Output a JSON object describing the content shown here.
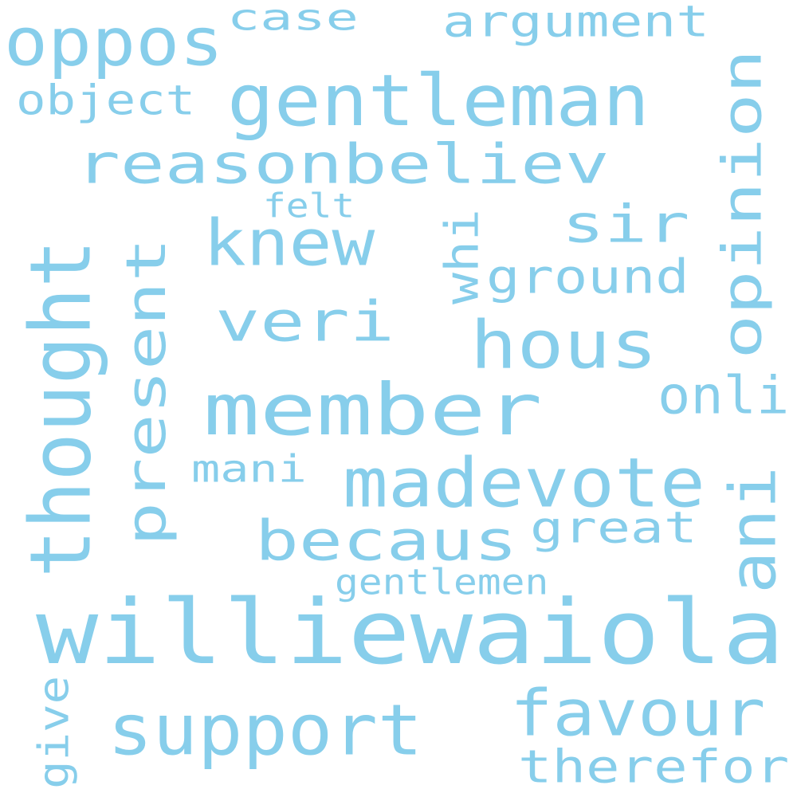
{
  "word_color": "#87ceeb",
  "background": "#ffffff",
  "words": [
    {
      "id": "williewaiola",
      "text": "williewaiola"
    },
    {
      "id": "member",
      "text": "member"
    },
    {
      "id": "thought",
      "text": "thought"
    },
    {
      "id": "gentleman",
      "text": "gentleman"
    },
    {
      "id": "madevote",
      "text": "madevote"
    },
    {
      "id": "reasonbeliev",
      "text": "reasonbeliev"
    },
    {
      "id": "hous",
      "text": "hous"
    },
    {
      "id": "becaus",
      "text": "becaus"
    },
    {
      "id": "support",
      "text": "support"
    },
    {
      "id": "oppos",
      "text": "oppos"
    },
    {
      "id": "opinion",
      "text": "opinion"
    },
    {
      "id": "present",
      "text": "present"
    },
    {
      "id": "knew",
      "text": "knew"
    },
    {
      "id": "veri",
      "text": "veri"
    },
    {
      "id": "favour",
      "text": "favour"
    },
    {
      "id": "sir",
      "text": "sir"
    },
    {
      "id": "ani",
      "text": "ani"
    },
    {
      "id": "therefor",
      "text": "therefor"
    },
    {
      "id": "argument",
      "text": "argument"
    },
    {
      "id": "ground",
      "text": "ground"
    },
    {
      "id": "great",
      "text": "great"
    },
    {
      "id": "onli",
      "text": "onli"
    },
    {
      "id": "case",
      "text": "case"
    },
    {
      "id": "object",
      "text": "object"
    },
    {
      "id": "whi",
      "text": "whi"
    },
    {
      "id": "mani",
      "text": "mani"
    },
    {
      "id": "gentlemen",
      "text": "gentlemen"
    },
    {
      "id": "felt",
      "text": "felt"
    },
    {
      "id": "give",
      "text": "give"
    }
  ]
}
